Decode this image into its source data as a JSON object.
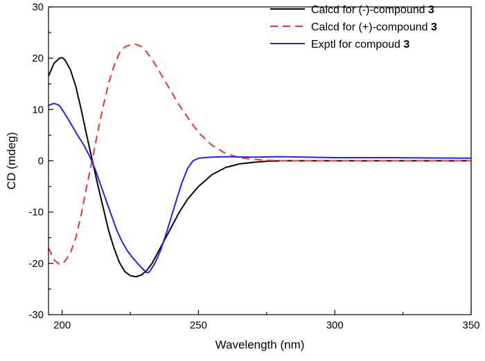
{
  "chart_data": {
    "type": "line",
    "title": "",
    "xlabel": "Wavelength (nm)",
    "ylabel": "CD (mdeg)",
    "xlim": [
      195,
      350
    ],
    "ylim": [
      -30,
      30
    ],
    "xticks": [
      200,
      250,
      300,
      350
    ],
    "yticks": [
      30,
      20,
      10,
      0,
      -10,
      -20,
      -30
    ],
    "grid": false,
    "legend_position": "top-right",
    "series": [
      {
        "name": "Calcd for (-)-compound",
        "name_suffix": "3",
        "color": "#000000",
        "style": "solid",
        "x": [
          195,
          197,
          199,
          200,
          201,
          203,
          205,
          207,
          209,
          211,
          213,
          215,
          217,
          219,
          221,
          223,
          225,
          227,
          229,
          231,
          233,
          235,
          237,
          240,
          243,
          246,
          250,
          255,
          260,
          265,
          270,
          275,
          280,
          290,
          300,
          320,
          350
        ],
        "y": [
          16.5,
          19.0,
          20.0,
          20.1,
          19.7,
          17.8,
          14.5,
          10.0,
          5.0,
          0.2,
          -4.5,
          -9.0,
          -13.5,
          -17.0,
          -19.8,
          -21.6,
          -22.4,
          -22.6,
          -22.3,
          -21.4,
          -20.0,
          -18.0,
          -16.0,
          -13.0,
          -10.0,
          -7.5,
          -5.0,
          -2.7,
          -1.3,
          -0.6,
          -0.3,
          -0.1,
          0.0,
          0.0,
          0.0,
          0.0,
          0.0
        ]
      },
      {
        "name": "Calcd for (+)-compound",
        "name_suffix": "3",
        "color": "#ff2a2a",
        "style": "dashed",
        "x": [
          195,
          197,
          199,
          200,
          201,
          203,
          205,
          207,
          209,
          211,
          213,
          215,
          217,
          219,
          221,
          223,
          225,
          227,
          229,
          231,
          233,
          235,
          237,
          240,
          243,
          246,
          250,
          255,
          260,
          265,
          270,
          275,
          280,
          290,
          300,
          320,
          350
        ],
        "y": [
          -17.0,
          -19.3,
          -20.2,
          -20.1,
          -19.6,
          -18.0,
          -15.0,
          -10.5,
          -5.0,
          0.0,
          5.5,
          10.5,
          15.0,
          18.5,
          21.0,
          22.2,
          22.6,
          22.7,
          22.3,
          21.2,
          19.8,
          18.0,
          16.2,
          13.5,
          10.8,
          8.5,
          5.5,
          3.0,
          1.4,
          0.6,
          0.3,
          0.1,
          0.0,
          0.0,
          0.0,
          0.0,
          0.0
        ]
      },
      {
        "name": "Exptl for compoud",
        "name_suffix": "3",
        "color": "#1f1fff",
        "style": "solid",
        "x": [
          195,
          197,
          199,
          200,
          202,
          204,
          206,
          208,
          210,
          212,
          214,
          216,
          218,
          220,
          222,
          224,
          226,
          228,
          230,
          231,
          232,
          234,
          236,
          238,
          240,
          242,
          244,
          246,
          248,
          250,
          252,
          255,
          260,
          270,
          280,
          290,
          300,
          320,
          350
        ],
        "y": [
          10.8,
          11.2,
          10.8,
          10.0,
          8.3,
          6.5,
          4.7,
          3.0,
          1.0,
          -1.5,
          -4.5,
          -7.5,
          -10.5,
          -13.5,
          -15.8,
          -17.6,
          -19.0,
          -20.2,
          -21.3,
          -21.8,
          -21.7,
          -20.0,
          -17.6,
          -14.5,
          -11.0,
          -7.5,
          -4.2,
          -1.5,
          0.0,
          0.5,
          0.6,
          0.7,
          0.8,
          0.7,
          0.8,
          0.7,
          0.6,
          0.6,
          0.5
        ]
      }
    ]
  }
}
